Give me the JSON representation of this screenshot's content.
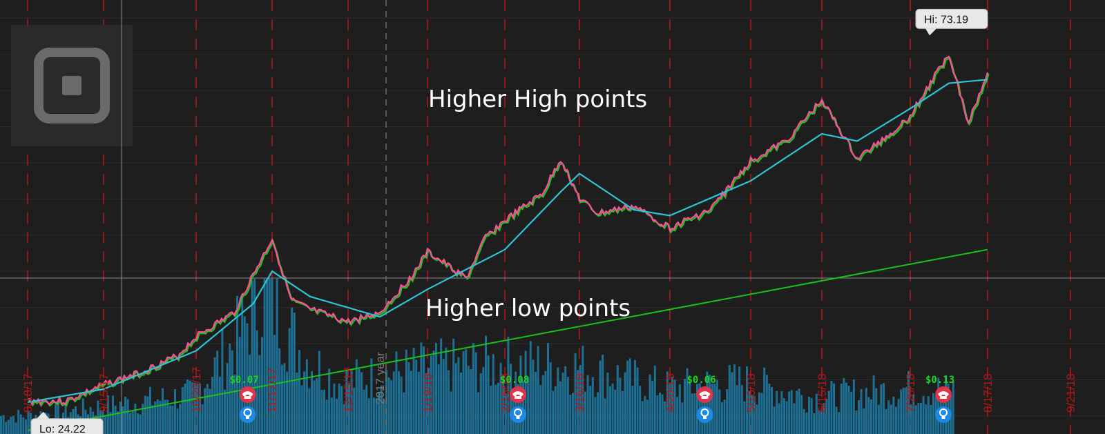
{
  "chart_data": {
    "type": "line",
    "title": "",
    "xlabel": "",
    "ylabel": "",
    "ylim": [
      20,
      80
    ],
    "grid": true,
    "legend": "none",
    "x_ticks": [
      "8/18/17",
      "9/15/17",
      "10/20/17",
      "11/17/17",
      "12/15/17",
      "1/19/18",
      "2/16/18",
      "3/16/18",
      "4/20/18",
      "5/18/18",
      "6/15/18",
      "7/20/18",
      "8/17/18",
      "9/21/18"
    ],
    "year_label": "2017 year",
    "series": [
      {
        "name": "",
        "role": "price",
        "color": "#ff4f9b",
        "x": [
          "8/18/17",
          "9/1/17",
          "9/15/17",
          "9/29/17",
          "10/13/17",
          "10/20/17",
          "11/3/17",
          "11/10/17",
          "11/17/17",
          "11/24/17",
          "12/1/17",
          "12/15/17",
          "12/29/17",
          "1/12/18",
          "1/19/18",
          "2/2/18",
          "2/9/18",
          "2/16/18",
          "3/2/18",
          "3/9/18",
          "3/16/18",
          "3/23/18",
          "4/6/18",
          "4/20/18",
          "5/4/18",
          "5/18/18",
          "6/1/18",
          "6/15/18",
          "6/29/18",
          "7/13/18",
          "7/20/18",
          "8/3/18",
          "8/10/18",
          "8/17/18"
        ],
        "values": [
          24.6,
          24.5,
          26.8,
          28.5,
          30.8,
          33.5,
          36.8,
          42.0,
          47.0,
          38.5,
          37.2,
          35.5,
          36.8,
          41.8,
          45.2,
          41.5,
          47.2,
          49.5,
          53.2,
          58.0,
          52.5,
          50.5,
          51.5,
          48.5,
          51.0,
          57.8,
          60.5,
          66.2,
          58.0,
          61.8,
          64.0,
          72.6,
          63.0,
          70.0
        ]
      },
      {
        "name": "",
        "role": "moving-average-short",
        "color": "#2ec4d8",
        "x": [
          "8/18/17",
          "9/15/17",
          "10/20/17",
          "11/10/17",
          "11/17/17",
          "12/1/17",
          "12/29/17",
          "1/19/18",
          "2/16/18",
          "3/9/18",
          "3/16/18",
          "4/6/18",
          "4/20/18",
          "5/18/18",
          "6/15/18",
          "6/29/18",
          "7/20/18",
          "8/3/18",
          "8/17/18"
        ],
        "values": [
          24.4,
          26.2,
          31.5,
          38.0,
          42.5,
          39.0,
          36.2,
          40.0,
          45.5,
          53.5,
          56.0,
          51.0,
          50.2,
          55.0,
          61.5,
          60.5,
          65.0,
          68.5,
          69.0
        ]
      },
      {
        "name": "",
        "role": "moving-average-long",
        "color": "#19c219",
        "x": [
          "8/18/17",
          "8/17/18"
        ],
        "values": [
          20.5,
          45.5
        ]
      }
    ],
    "volume": {
      "color": "#1d6f94",
      "ylim": [
        0,
        100
      ],
      "x": [
        "8/18/17",
        "9/15/17",
        "10/20/17",
        "11/3/17",
        "11/17/17",
        "12/1/17",
        "12/15/17",
        "1/19/18",
        "2/16/18",
        "3/16/18",
        "4/20/18",
        "5/18/18",
        "6/15/18",
        "7/20/18",
        "8/17/18"
      ],
      "values": [
        12,
        18,
        26,
        55,
        96,
        52,
        34,
        44,
        46,
        44,
        30,
        34,
        24,
        30,
        28
      ]
    },
    "annotations": [
      {
        "text": "Higher High points",
        "x": "2/16/18",
        "y": 57
      },
      {
        "text": "Higher low points",
        "x": "2/16/18",
        "y": 36
      }
    ],
    "callouts": [
      {
        "text": "Lo: 24.22",
        "x": "9/1/17",
        "y": 24.22
      },
      {
        "text": "Hi: 73.19",
        "x": "7/27/18",
        "y": 73.19
      }
    ],
    "earnings": [
      {
        "label": "$0.07",
        "x": "11/10/17"
      },
      {
        "label": "$0.08",
        "x": "2/23/18"
      },
      {
        "label": "$0.06",
        "x": "5/4/18"
      },
      {
        "label": "$0.13",
        "x": "8/3/18"
      }
    ],
    "earnings_icons": [
      "phone-icon",
      "lightbulb-icon"
    ]
  },
  "colors": {
    "background": "#1e1e1e",
    "grid_vertical": "#b01818",
    "crosshair": "#8a8a8a",
    "earnings_phone": "#e0344b",
    "earnings_bulb": "#1e88e5"
  },
  "logo": "square-logo"
}
